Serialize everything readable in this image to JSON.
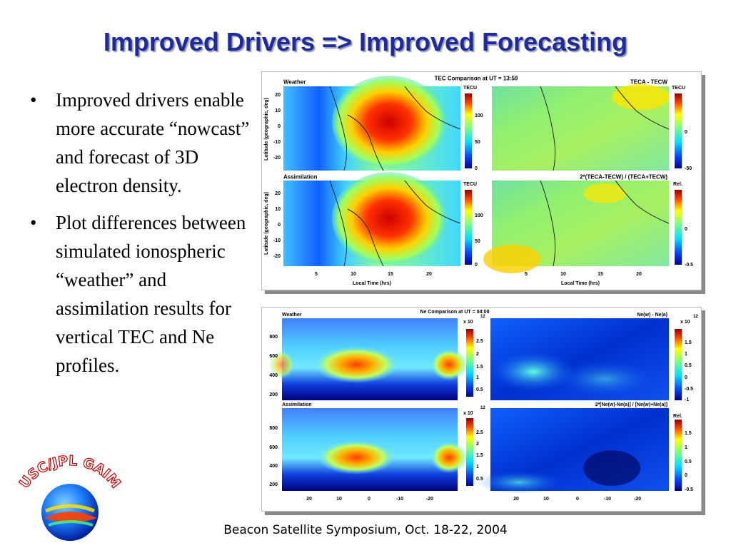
{
  "slide": {
    "title": "Improved Drivers => Improved Forecasting",
    "bullets": [
      "Improved drivers enable more accurate “nowcast” and forecast of 3D electron density.",
      "Plot differences between simulated ionospheric “weather” and assimilation results for vertical TEC and Ne profiles."
    ],
    "footer": "Beacon Satellite Symposium, Oct. 18-22, 2004",
    "logo_text": "USC/JPL GAIM"
  },
  "tec_figure": {
    "title": "TEC Comparison at UT = 13:59",
    "panel_labels": [
      "Weather",
      "TECA - TECW",
      "Assimilation",
      "2*(TECA-TECW) / (TECA+TECW)"
    ],
    "ylabel": "Latitude (geographic, deg)",
    "xlabel": "Local Time (hrs)",
    "y_ticks": [
      "20",
      "10",
      "0",
      "-10",
      "-20"
    ],
    "x_ticks": [
      "5",
      "10",
      "15",
      "20"
    ],
    "colorbars": [
      {
        "title": "TECU",
        "ticks": [
          "100",
          "50",
          "0"
        ]
      },
      {
        "title": "TECU",
        "ticks": [
          "0",
          "-50"
        ]
      },
      {
        "title": "TECU",
        "ticks": [
          "100",
          "50",
          "0"
        ]
      },
      {
        "title": "Rel.",
        "ticks": [
          "0",
          "-0.5"
        ]
      }
    ]
  },
  "ne_figure": {
    "title": "Ne Comparison at UT = 04:00",
    "panel_labels": [
      "Weather",
      "Ne(w) - Ne(a)",
      "Assimilation",
      "2*[Ne(w)-Ne(a)] / [Ne(w)+Ne(a)]"
    ],
    "y_ticks": [
      "800",
      "600",
      "400",
      "200"
    ],
    "x_ticks": [
      "20",
      "10",
      "0",
      "-10",
      "-20"
    ],
    "colorbars": [
      {
        "title": "x 10",
        "exp": "12",
        "ticks": [
          "2.5",
          "2",
          "1.5",
          "1",
          "0.5"
        ]
      },
      {
        "title": "x 10",
        "exp": "12",
        "ticks": [
          "1.5",
          "1",
          "0.5",
          "0",
          "-0.5",
          "-1"
        ]
      },
      {
        "title": "x 10",
        "exp": "12",
        "ticks": [
          "2.5",
          "2",
          "1.5",
          "1",
          "0.5"
        ]
      },
      {
        "title": "Rel.",
        "exp": "",
        "ticks": [
          "1.5",
          "1",
          "0.5",
          "0",
          "-0.5"
        ]
      }
    ]
  },
  "colors": {
    "title": "#1f2a9c",
    "title_shadow": "#9aa0b8"
  }
}
